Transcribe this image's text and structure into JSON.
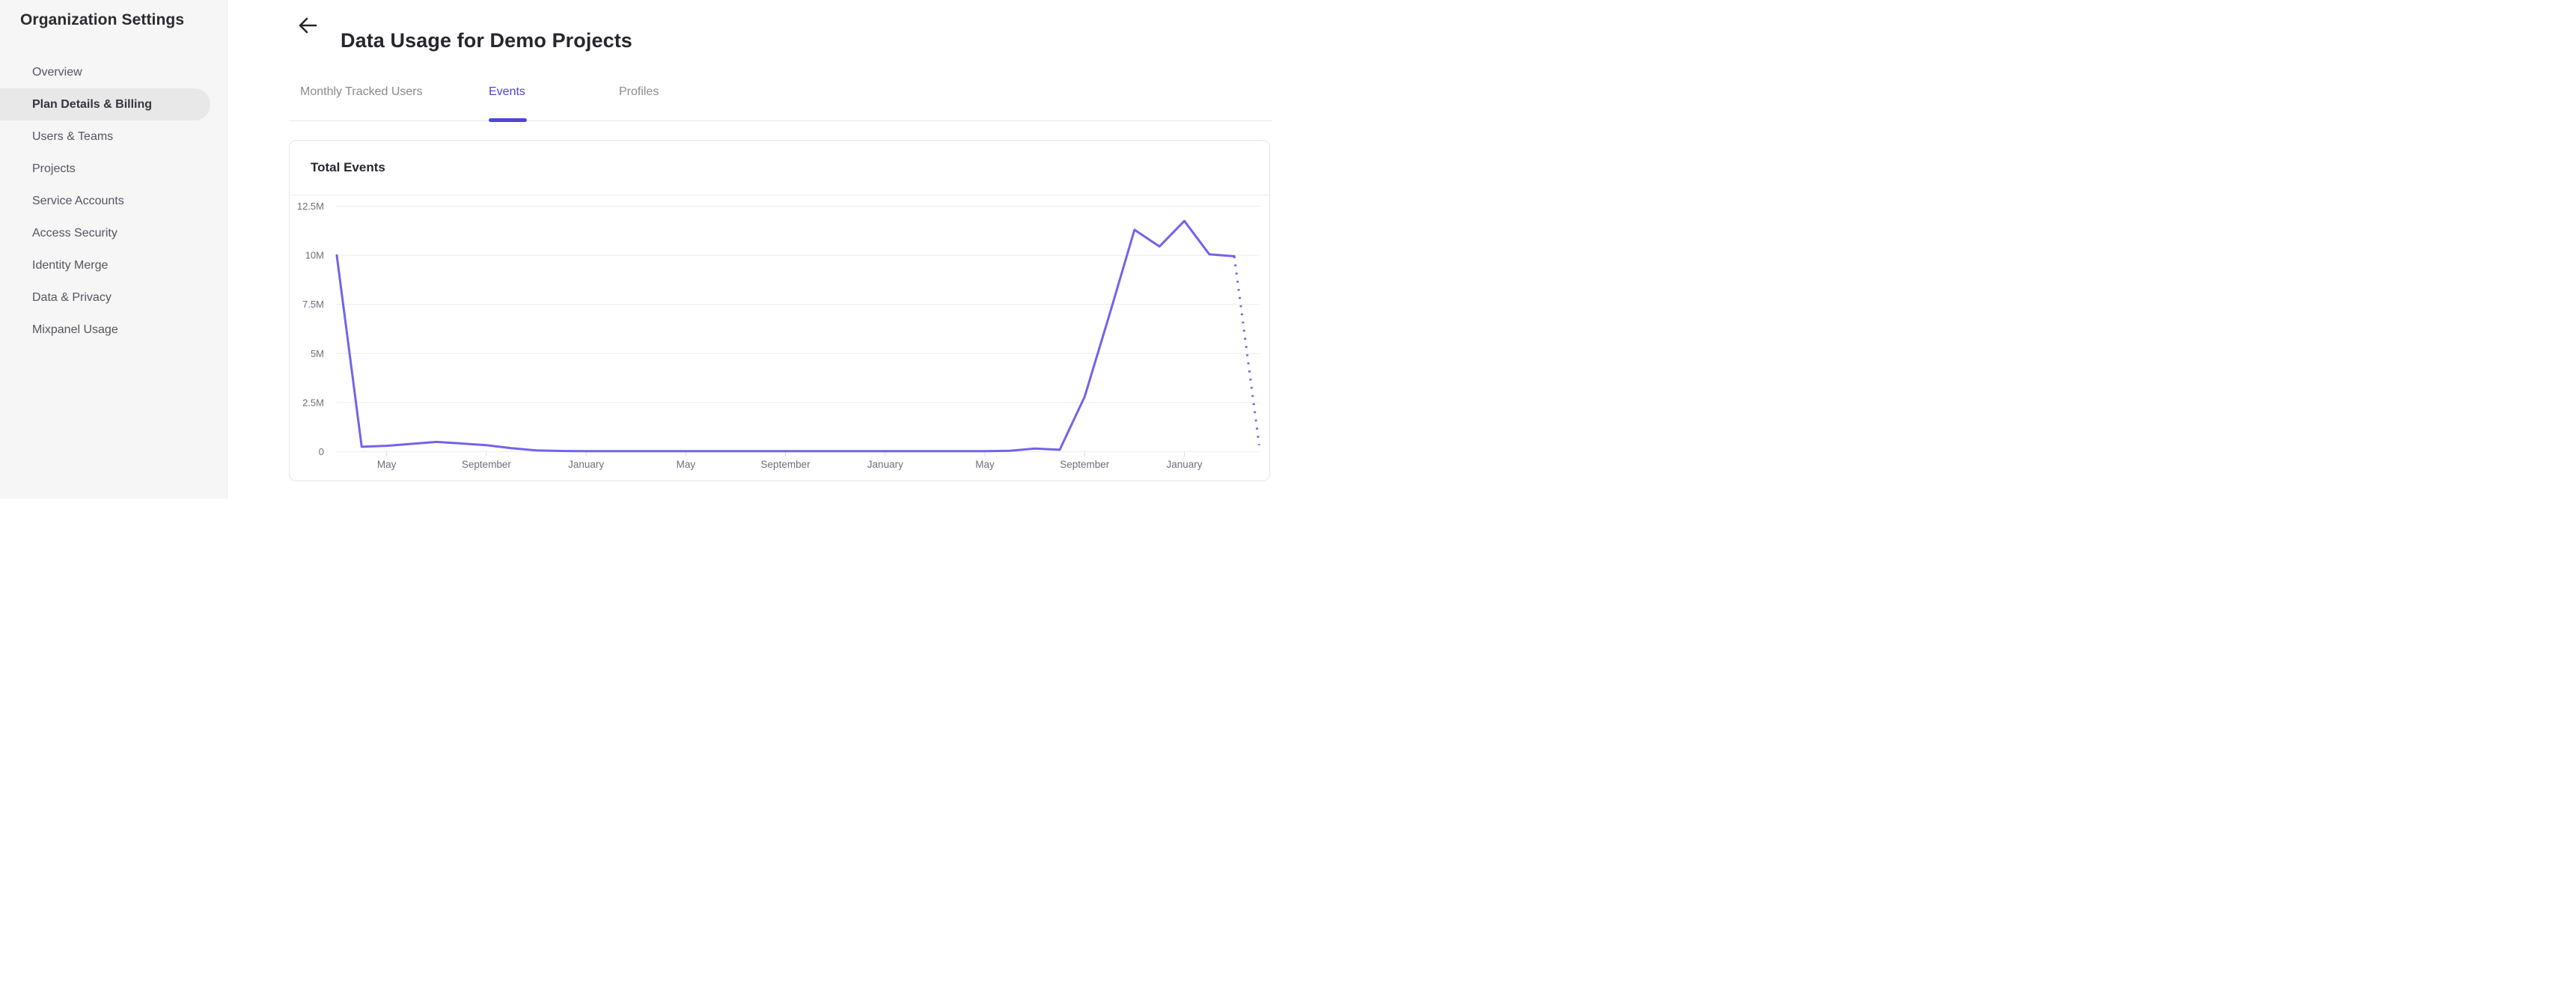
{
  "sidebar": {
    "title": "Organization Settings",
    "items": [
      {
        "label": "Overview",
        "active": false
      },
      {
        "label": "Plan Details & Billing",
        "active": true
      },
      {
        "label": "Users & Teams",
        "active": false
      },
      {
        "label": "Projects",
        "active": false
      },
      {
        "label": "Service Accounts",
        "active": false
      },
      {
        "label": "Access Security",
        "active": false
      },
      {
        "label": "Identity Merge",
        "active": false
      },
      {
        "label": "Data & Privacy",
        "active": false
      },
      {
        "label": "Mixpanel Usage",
        "active": false
      }
    ]
  },
  "header": {
    "back_icon": "←",
    "title": "Data Usage for Demo Projects"
  },
  "tabs": [
    {
      "label": "Monthly Tracked Users",
      "active": false
    },
    {
      "label": "Events",
      "active": true
    },
    {
      "label": "Profiles",
      "active": false
    }
  ],
  "card": {
    "title": "Total Events"
  },
  "colors": {
    "accent": "#4f44db",
    "line": "#7164ea",
    "gridline": "#ececee",
    "axis_label": "#6f6f79",
    "active_pill": "#e8e8e9"
  },
  "chart_data": {
    "type": "line",
    "title": "Total Events",
    "x_unit": "month",
    "x_months_span": 38,
    "x_tick_labels": [
      "May",
      "September",
      "January",
      "May",
      "September",
      "January",
      "May",
      "September",
      "January"
    ],
    "x_tick_month_indices": [
      2,
      6,
      10,
      14,
      18,
      22,
      26,
      30,
      34
    ],
    "y_tick_labels": [
      "12.5M",
      "10M",
      "7.5M",
      "5M",
      "2.5M",
      "0"
    ],
    "y_tick_values_millions": [
      12.5,
      10,
      7.5,
      5,
      2.5,
      0
    ],
    "ylim_millions": [
      0,
      13.05
    ],
    "grid": "horizontal",
    "legend": "none",
    "series": [
      {
        "name": "Total Events",
        "color": "#7164ea",
        "values_millions": [
          10,
          0.25,
          0.3,
          0.4,
          0.5,
          0.42,
          0.33,
          0.18,
          0.07,
          0.04,
          0.03,
          0.03,
          0.03,
          0.03,
          0.03,
          0.03,
          0.03,
          0.03,
          0.03,
          0.03,
          0.03,
          0.03,
          0.03,
          0.03,
          0.03,
          0.03,
          0.03,
          0.05,
          0.16,
          0.1,
          2.8,
          7,
          11.3,
          10.45,
          11.75,
          10.05,
          9.95,
          0.33
        ],
        "last_segment_style": "dotted"
      }
    ]
  }
}
